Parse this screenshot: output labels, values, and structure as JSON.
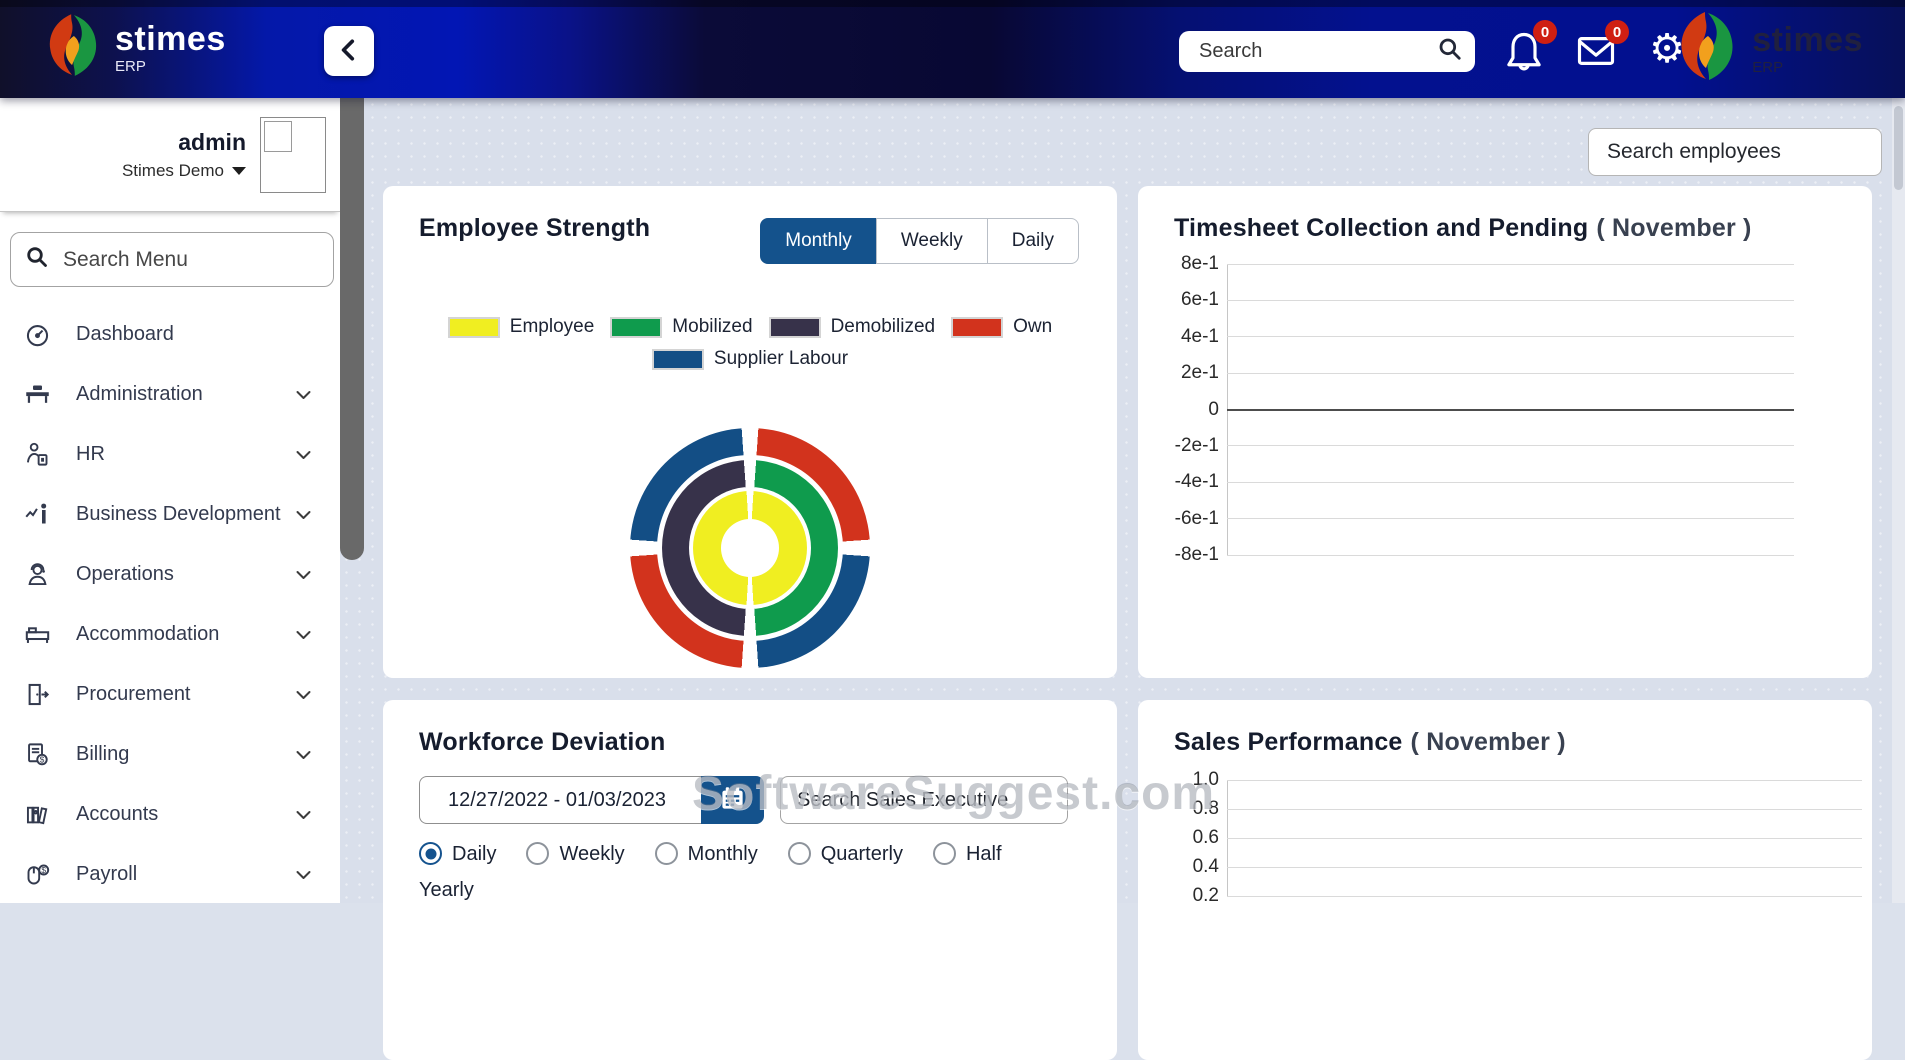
{
  "navbar": {
    "brand_name": "stimes",
    "brand_sub": "ERP",
    "search_placeholder": "Search",
    "notifications_badge": "0",
    "messages_badge": "0",
    "icons": [
      "brand-flame-icon",
      "back-chevron-icon",
      "search-icon",
      "bell-icon",
      "mail-icon",
      "gear-icon"
    ],
    "brand_right_name": "stimes",
    "brand_right_sub": "ERP"
  },
  "sidebar": {
    "user_name": "admin",
    "user_org": "Stimes Demo",
    "search_placeholder": "Search Menu",
    "items": [
      {
        "label": "Dashboard",
        "icon": "gauge-icon",
        "expandable": false
      },
      {
        "label": "Administration",
        "icon": "desk-icon",
        "expandable": true
      },
      {
        "label": "HR",
        "icon": "hr-badge-icon",
        "expandable": true
      },
      {
        "label": "Business Development",
        "icon": "growth-presenter-icon",
        "expandable": true
      },
      {
        "label": "Operations",
        "icon": "operator-icon",
        "expandable": true
      },
      {
        "label": "Accommodation",
        "icon": "bed-icon",
        "expandable": true
      },
      {
        "label": "Procurement",
        "icon": "door-icon",
        "expandable": true
      },
      {
        "label": "Billing",
        "icon": "invoice-icon",
        "expandable": true
      },
      {
        "label": "Accounts",
        "icon": "ledger-icon",
        "expandable": true
      },
      {
        "label": "Payroll",
        "icon": "payroll-icon",
        "expandable": true
      }
    ]
  },
  "main": {
    "employee_search_placeholder": "Search employees",
    "employee_strength": {
      "title": "Employee Strength",
      "period_buttons": [
        {
          "label": "Monthly",
          "active": true
        },
        {
          "label": "Weekly",
          "active": false
        },
        {
          "label": "Daily",
          "active": false
        }
      ]
    },
    "timesheet": {
      "title": "Timesheet Collection and Pending",
      "period": "( November )"
    },
    "workforce": {
      "title": "Workforce Deviation",
      "date_range": "12/27/2022 - 01/03/2023",
      "search_placeholder": "Search Sales Executive",
      "frequency_options": [
        {
          "label": "Daily",
          "selected": true
        },
        {
          "label": "Weekly",
          "selected": false
        },
        {
          "label": "Monthly",
          "selected": false
        },
        {
          "label": "Quarterly",
          "selected": false
        },
        {
          "label": "Half Yearly",
          "selected": false
        }
      ]
    },
    "sales": {
      "title": "Sales Performance",
      "period": "( November )"
    }
  },
  "watermark": "SoftwareSuggest.com",
  "colors": {
    "accent_blue": "#14528c",
    "badge_red": "#cf1f12",
    "employee_yellow": "#f0ee21",
    "mobilized_green": "#0f9b4d",
    "demobilized_dark": "#37324a",
    "own_red": "#d2331d",
    "supplier_blue": "#134e85"
  },
  "chart_data": [
    {
      "type": "pie",
      "variant": "multi-ring-donut",
      "title": "Employee Strength",
      "legend": [
        {
          "label": "Employee",
          "color": "#f0ee21"
        },
        {
          "label": "Mobilized",
          "color": "#0f9b4d"
        },
        {
          "label": "Demobilized",
          "color": "#37324a"
        },
        {
          "label": "Own",
          "color": "#d2331d"
        },
        {
          "label": "Supplier Labour",
          "color": "#134e85"
        }
      ],
      "rings": [
        {
          "name": "outer",
          "segments": [
            {
              "label": "Own",
              "color": "#d2331d",
              "fraction": 0.25
            },
            {
              "label": "Supplier Labour",
              "color": "#134e85",
              "fraction": 0.25
            },
            {
              "label": "Own",
              "color": "#d2331d",
              "fraction": 0.25
            },
            {
              "label": "Supplier Labour",
              "color": "#134e85",
              "fraction": 0.25
            }
          ]
        },
        {
          "name": "middle",
          "segments": [
            {
              "label": "Mobilized",
              "color": "#0f9b4d",
              "fraction": 0.5
            },
            {
              "label": "Demobilized",
              "color": "#37324a",
              "fraction": 0.5
            }
          ]
        },
        {
          "name": "inner",
          "segments": [
            {
              "label": "Employee",
              "color": "#f0ee21",
              "fraction": 0.5
            },
            {
              "label": "Employee",
              "color": "#f0ee21",
              "fraction": 0.5
            }
          ]
        }
      ]
    },
    {
      "type": "line",
      "title": "Timesheet Collection and Pending ( November )",
      "yticks": [
        "8e-1",
        "6e-1",
        "4e-1",
        "2e-1",
        "0",
        "-2e-1",
        "-4e-1",
        "-6e-1",
        "-8e-1"
      ],
      "ylim": [
        -0.8,
        0.8
      ],
      "grid": true,
      "series": [],
      "note": "no data plotted"
    },
    {
      "type": "line",
      "title": "Sales Performance ( November )",
      "yticks": [
        "1.0",
        "0.8",
        "0.6",
        "0.4",
        "0.2"
      ],
      "ylim_visible": [
        0.2,
        1.0
      ],
      "grid": true,
      "series": [],
      "note": "no data plotted; chart clipped at bottom of viewport"
    }
  ]
}
